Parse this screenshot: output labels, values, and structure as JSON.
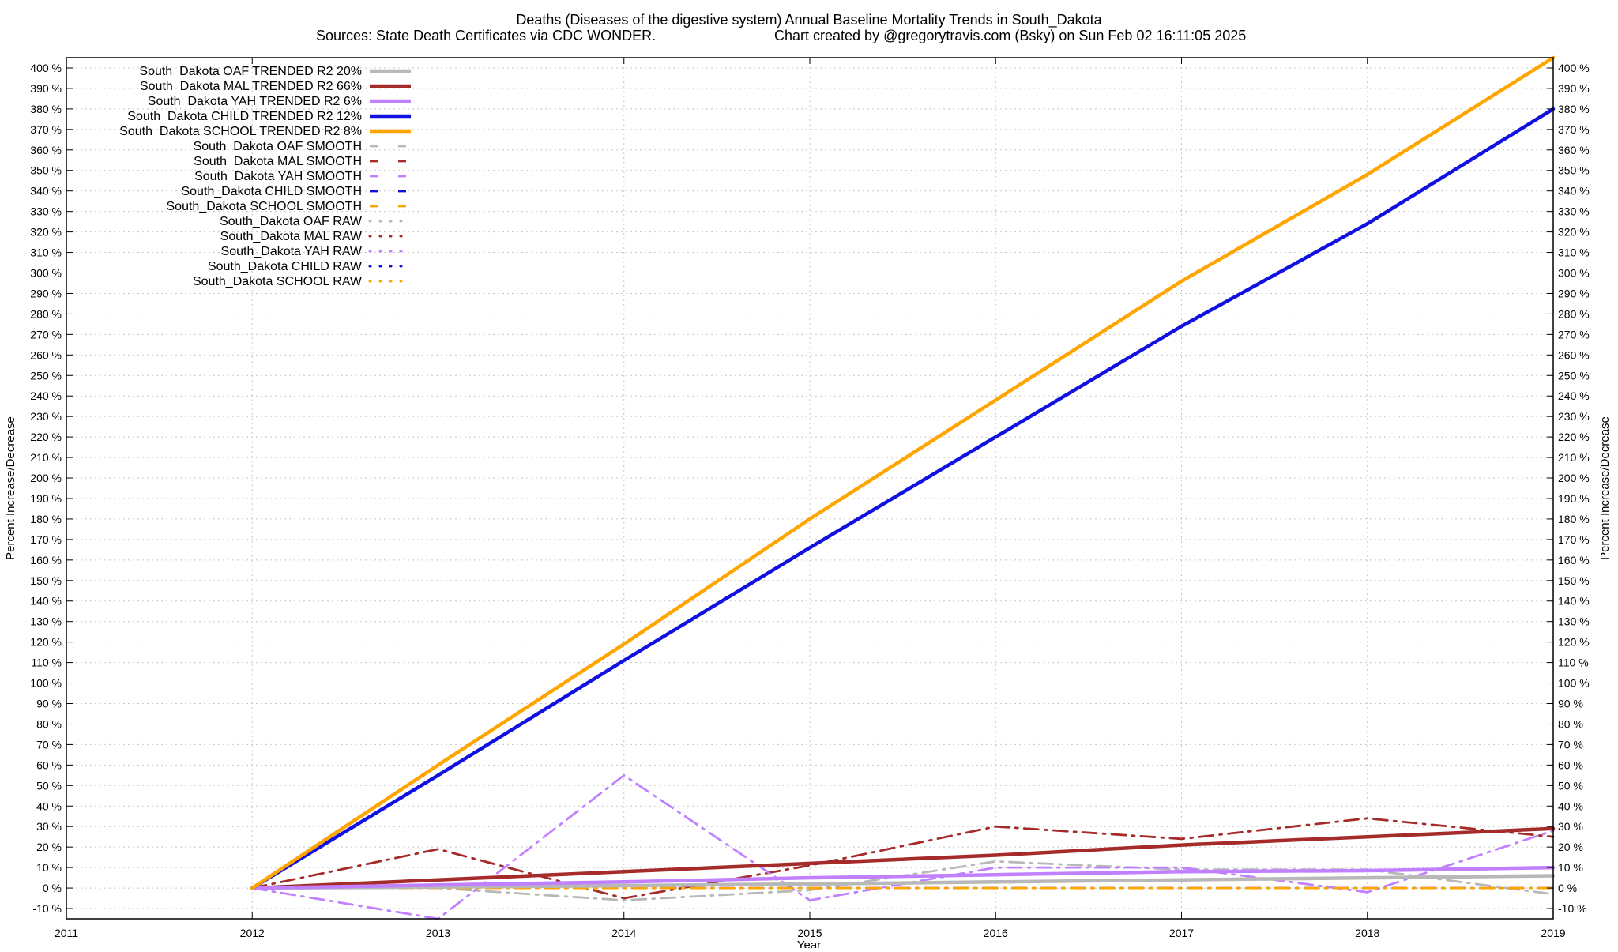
{
  "chart_data": {
    "type": "line",
    "title": "Deaths (Diseases of the digestive system)  Annual Baseline Mortality Trends in South_Dakota",
    "subtitle_left": "Sources: State Death Certificates via CDC WONDER.",
    "subtitle_right": "Chart created by @gregorytravis.com (Bsky) on Sun Feb 02 16:11:05 2025",
    "xlabel": "Year",
    "ylabel": "Percent Increase/Decrease",
    "xlim": [
      2011,
      2019
    ],
    "ylim": [
      -15,
      405
    ],
    "x_ticks": [
      2011,
      2012,
      2013,
      2014,
      2015,
      2016,
      2017,
      2018,
      2019
    ],
    "y_ticks": [
      -10,
      0,
      10,
      20,
      30,
      40,
      50,
      60,
      70,
      80,
      90,
      100,
      110,
      120,
      130,
      140,
      150,
      160,
      170,
      180,
      190,
      200,
      210,
      220,
      230,
      240,
      250,
      260,
      270,
      280,
      290,
      300,
      310,
      320,
      330,
      340,
      350,
      360,
      370,
      380,
      390,
      400
    ],
    "y_tick_suffix": " %",
    "grid": true,
    "legend_position": "top-left",
    "series": [
      {
        "name": "South_Dakota OAF TRENDED R2  20%",
        "style": "trend",
        "color": "#b8b8b8",
        "x": [
          2012,
          2013,
          2014,
          2015,
          2016,
          2017,
          2018,
          2019
        ],
        "values": [
          0,
          0.5,
          1.2,
          2.0,
          3.0,
          4.0,
          5.0,
          6.0
        ]
      },
      {
        "name": "South_Dakota MAL TRENDED R2  66%",
        "style": "trend",
        "color": "#a52a2a",
        "x": [
          2012,
          2013,
          2014,
          2015,
          2016,
          2017,
          2018,
          2019
        ],
        "values": [
          0,
          4,
          8,
          12,
          16,
          21,
          25,
          29
        ]
      },
      {
        "name": "South_Dakota YAH TRENDED R2   6%",
        "style": "trend",
        "color": "#c080ff",
        "x": [
          2012,
          2013,
          2014,
          2015,
          2016,
          2017,
          2018,
          2019
        ],
        "values": [
          0,
          1.5,
          3,
          5,
          6.5,
          8,
          8.5,
          10
        ]
      },
      {
        "name": "South_Dakota CHILD TRENDED R2  12%",
        "style": "trend",
        "color": "#1010e0",
        "x": [
          2012,
          2013,
          2014,
          2015,
          2016,
          2017,
          2018,
          2019
        ],
        "values": [
          0,
          55,
          111,
          166,
          220,
          274,
          324,
          380
        ]
      },
      {
        "name": "South_Dakota SCHOOL TRENDED R2   8%",
        "style": "trend",
        "color": "#ffa500",
        "x": [
          2012,
          2013,
          2014,
          2015,
          2016,
          2017,
          2018,
          2019
        ],
        "values": [
          0,
          60,
          119,
          180,
          238,
          296,
          348,
          405
        ]
      },
      {
        "name": "South_Dakota OAF SMOOTH",
        "style": "smooth",
        "color": "#b8b8b8",
        "x": [
          2012,
          2013,
          2014,
          2015,
          2016,
          2017,
          2018,
          2019
        ],
        "values": [
          0,
          0,
          -6,
          -1,
          13,
          9,
          9,
          -3
        ]
      },
      {
        "name": "South_Dakota MAL SMOOTH",
        "style": "smooth",
        "color": "#a52a2a",
        "x": [
          2012,
          2013,
          2014,
          2015,
          2016,
          2017,
          2018,
          2019
        ],
        "values": [
          0,
          19,
          -5,
          11,
          30,
          24,
          34,
          25
        ]
      },
      {
        "name": "South_Dakota YAH SMOOTH",
        "style": "smooth",
        "color": "#c080ff",
        "x": [
          2012,
          2013,
          2014,
          2015,
          2016,
          2017,
          2018,
          2019
        ],
        "values": [
          0,
          -15,
          55,
          -6,
          10,
          10,
          -2,
          28
        ]
      },
      {
        "name": "South_Dakota CHILD SMOOTH",
        "style": "smooth",
        "color": "#1010e0",
        "x": [
          2012,
          2013,
          2014,
          2015,
          2016,
          2017,
          2018,
          2019
        ],
        "values": [
          0,
          0,
          0,
          0,
          0,
          0,
          0,
          0
        ]
      },
      {
        "name": "South_Dakota SCHOOL SMOOTH",
        "style": "smooth",
        "color": "#ffa500",
        "x": [
          2012,
          2013,
          2014,
          2015,
          2016,
          2017,
          2018,
          2019
        ],
        "values": [
          0,
          0,
          0,
          0,
          0,
          0,
          0,
          0
        ]
      },
      {
        "name": "South_Dakota OAF RAW",
        "style": "raw",
        "color": "#b8b8b8",
        "x": [],
        "values": []
      },
      {
        "name": "South_Dakota MAL RAW",
        "style": "raw",
        "color": "#a52a2a",
        "x": [],
        "values": []
      },
      {
        "name": "South_Dakota YAH RAW",
        "style": "raw",
        "color": "#c080ff",
        "x": [],
        "values": []
      },
      {
        "name": "South_Dakota CHILD RAW",
        "style": "raw",
        "color": "#1010e0",
        "x": [],
        "values": []
      },
      {
        "name": "South_Dakota SCHOOL RAW",
        "style": "raw",
        "color": "#ffa500",
        "x": [],
        "values": []
      }
    ]
  }
}
